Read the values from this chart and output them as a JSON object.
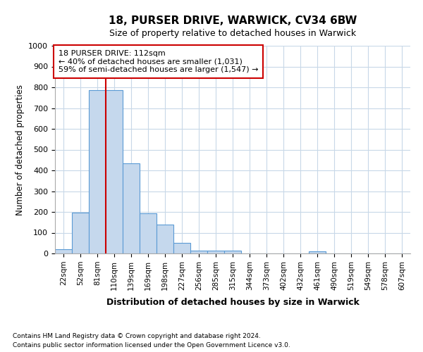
{
  "title1": "18, PURSER DRIVE, WARWICK, CV34 6BW",
  "title2": "Size of property relative to detached houses in Warwick",
  "xlabel": "Distribution of detached houses by size in Warwick",
  "ylabel": "Number of detached properties",
  "bin_labels": [
    "22sqm",
    "52sqm",
    "81sqm",
    "110sqm",
    "139sqm",
    "169sqm",
    "198sqm",
    "227sqm",
    "256sqm",
    "285sqm",
    "315sqm",
    "344sqm",
    "373sqm",
    "402sqm",
    "432sqm",
    "461sqm",
    "490sqm",
    "519sqm",
    "549sqm",
    "578sqm",
    "607sqm"
  ],
  "bar_heights": [
    20,
    195,
    785,
    785,
    435,
    192,
    140,
    50,
    15,
    12,
    12,
    0,
    0,
    0,
    0,
    10,
    0,
    0,
    0,
    0,
    0
  ],
  "bar_color": "#c5d8ed",
  "bar_edgecolor": "#5b9bd5",
  "ylim_max": 1000,
  "yticks": [
    0,
    100,
    200,
    300,
    400,
    500,
    600,
    700,
    800,
    900,
    1000
  ],
  "vline_x": 2.5,
  "vline_color": "#cc0000",
  "annotation_line1": "18 PURSER DRIVE: 112sqm",
  "annotation_line2": "← 40% of detached houses are smaller (1,031)",
  "annotation_line3": "59% of semi-detached houses are larger (1,547) →",
  "annotation_box_edgecolor": "#cc0000",
  "footnote_line1": "Contains HM Land Registry data © Crown copyright and database right 2024.",
  "footnote_line2": "Contains public sector information licensed under the Open Government Licence v3.0.",
  "grid_color": "#c8d8e8",
  "bg_color": "#ffffff"
}
